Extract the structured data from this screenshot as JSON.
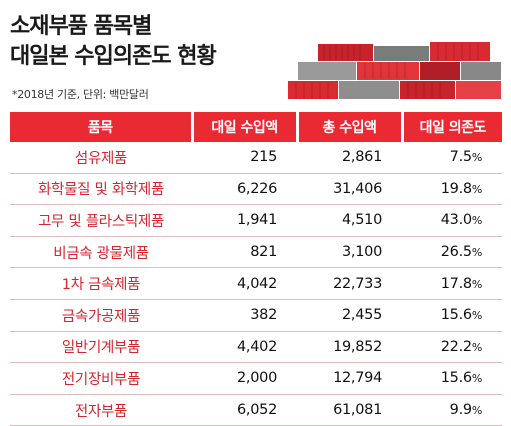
{
  "title_line1": "소재부품 품목별",
  "title_line2": "대일본 수입의존도 현황",
  "unit_note": "*2018년 기준, 단위: 백만달러",
  "colors": {
    "accent": "#ea2a33",
    "name_text": "#d8262e",
    "row_border": "#e2bcbc"
  },
  "icons": {
    "illustration": "shipping-containers-icon"
  },
  "table": {
    "headers": [
      "품목",
      "대일 수입액",
      "총 수입액",
      "대일 의존도"
    ],
    "rows": [
      {
        "name": "섬유제품",
        "japan": "215",
        "total": "2,861",
        "pct": "7.5",
        "unit": "%"
      },
      {
        "name": "화학물질 및 화학제품",
        "japan": "6,226",
        "total": "31,406",
        "pct": "19.8",
        "unit": "%"
      },
      {
        "name": "고무 및 플라스틱제품",
        "japan": "1,941",
        "total": "4,510",
        "pct": "43.0",
        "unit": "%"
      },
      {
        "name": "비금속 광물제품",
        "japan": "821",
        "total": "3,100",
        "pct": "26.5",
        "unit": "%"
      },
      {
        "name": "1차 금속제품",
        "japan": "4,042",
        "total": "22,733",
        "pct": "17.8",
        "unit": "%"
      },
      {
        "name": "금속가공제품",
        "japan": "382",
        "total": "2,455",
        "pct": "15.6",
        "unit": "%"
      },
      {
        "name": "일반기계부품",
        "japan": "4,402",
        "total": "19,852",
        "pct": "22.2",
        "unit": "%"
      },
      {
        "name": "전기장비부품",
        "japan": "2,000",
        "total": "12,794",
        "pct": "15.6",
        "unit": "%"
      },
      {
        "name": "전자부품",
        "japan": "6,052",
        "total": "61,081",
        "pct": "9.9",
        "unit": "%"
      }
    ]
  }
}
